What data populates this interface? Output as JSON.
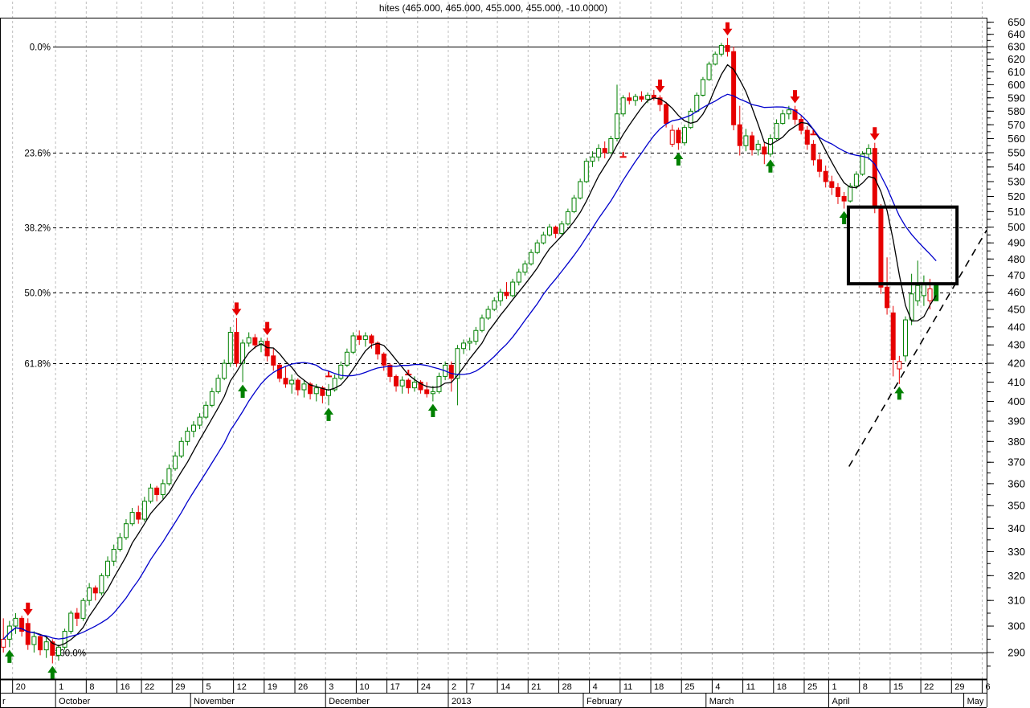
{
  "title": "hites (465.000, 465.000, 455.000, 455.000, -10.0000)",
  "colors": {
    "background": "#ffffff",
    "candle_up": "#008000",
    "candle_down": "#e60000",
    "ma_fast": "#000000",
    "ma_slow": "#0000cc",
    "grid": "#bdbdbd",
    "fib_line": "#000000",
    "annotation": "#000000",
    "axis_text": "#000000"
  },
  "chart_data": {
    "type": "candlestick",
    "y_scale": "log",
    "grid": "weekly-vertical-dashed",
    "legend_position": "none",
    "title": "hites (465.000, 465.000, 455.000, 455.000, -10.0000)",
    "last_quote": {
      "open": 465.0,
      "high": 465.0,
      "low": 455.0,
      "close": 455.0,
      "change": -10.0
    },
    "y_axis_side": "right",
    "y_ticks": [
      650,
      640,
      630,
      620,
      610,
      600,
      590,
      580,
      570,
      560,
      550,
      540,
      530,
      520,
      510,
      500,
      490,
      480,
      470,
      460,
      450,
      440,
      430,
      420,
      410,
      400,
      390,
      380,
      370,
      360,
      350,
      340,
      330,
      320,
      310,
      300,
      290
    ],
    "y_minor_step": 5,
    "fib_levels": [
      {
        "label": "0.0%",
        "price": 630,
        "style": "solid"
      },
      {
        "label": "23.6%",
        "price": 550,
        "style": "dashed"
      },
      {
        "label": "38.2%",
        "price": 500,
        "style": "dashed"
      },
      {
        "label": "50.0%",
        "price": 460,
        "style": "dashed"
      },
      {
        "label": "61.8%",
        "price": 420,
        "style": "dashed"
      },
      {
        "label": "100.0%",
        "price": 290,
        "style": "solid"
      }
    ],
    "fib_anchor_high": 630,
    "fib_anchor_low": 290,
    "week_ticks": [
      {
        "l": "20",
        "i": 2
      },
      {
        "l": "1",
        "i": 9
      },
      {
        "l": "8",
        "i": 14
      },
      {
        "l": "16",
        "i": 19
      },
      {
        "l": "22",
        "i": 23
      },
      {
        "l": "29",
        "i": 28
      },
      {
        "l": "5",
        "i": 33
      },
      {
        "l": "12",
        "i": 38
      },
      {
        "l": "19",
        "i": 43
      },
      {
        "l": "26",
        "i": 48
      },
      {
        "l": "3",
        "i": 53
      },
      {
        "l": "10",
        "i": 58
      },
      {
        "l": "17",
        "i": 63
      },
      {
        "l": "24",
        "i": 68
      },
      {
        "l": "2",
        "i": 73
      },
      {
        "l": "7",
        "i": 76
      },
      {
        "l": "14",
        "i": 81
      },
      {
        "l": "21",
        "i": 86
      },
      {
        "l": "28",
        "i": 91
      },
      {
        "l": "4",
        "i": 96
      },
      {
        "l": "11",
        "i": 101
      },
      {
        "l": "18",
        "i": 106
      },
      {
        "l": "25",
        "i": 111
      },
      {
        "l": "4",
        "i": 116
      },
      {
        "l": "11",
        "i": 121
      },
      {
        "l": "18",
        "i": 126
      },
      {
        "l": "25",
        "i": 131
      },
      {
        "l": "1",
        "i": 135
      },
      {
        "l": "8",
        "i": 140
      },
      {
        "l": "15",
        "i": 145
      },
      {
        "l": "22",
        "i": 150
      },
      {
        "l": "29",
        "i": 155
      },
      {
        "l": "6",
        "i": 160
      }
    ],
    "months": [
      {
        "label": "r",
        "i": -0.4
      },
      {
        "label": "October",
        "i": 9
      },
      {
        "label": "November",
        "i": 31
      },
      {
        "label": "December",
        "i": 53
      },
      {
        "label": "2013",
        "i": 73
      },
      {
        "label": "February",
        "i": 95
      },
      {
        "label": "March",
        "i": 115
      },
      {
        "label": "April",
        "i": 135
      },
      {
        "label": "May",
        "i": 157
      }
    ],
    "prev_close_seed": 300,
    "color_overrides": {
      "152": "green"
    },
    "candles": [
      [
        292,
        303,
        290,
        295
      ],
      [
        295,
        302,
        292,
        300
      ],
      [
        300,
        305,
        297,
        303
      ],
      [
        303,
        304,
        296,
        298
      ],
      [
        301,
        303,
        291,
        293
      ],
      [
        293,
        298,
        290,
        296
      ],
      [
        296,
        297,
        289,
        291
      ],
      [
        291,
        296,
        288,
        294
      ],
      [
        294,
        295,
        286,
        289
      ],
      [
        289,
        293,
        287,
        292
      ],
      [
        292,
        299,
        291,
        298
      ],
      [
        298,
        306,
        297,
        305
      ],
      [
        305,
        307,
        300,
        303
      ],
      [
        303,
        311,
        302,
        310
      ],
      [
        310,
        317,
        308,
        315
      ],
      [
        315,
        316,
        310,
        313
      ],
      [
        313,
        321,
        312,
        320
      ],
      [
        320,
        328,
        319,
        326
      ],
      [
        326,
        333,
        324,
        331
      ],
      [
        331,
        338,
        330,
        336
      ],
      [
        336,
        344,
        335,
        342
      ],
      [
        342,
        349,
        341,
        347
      ],
      [
        347,
        350,
        342,
        344
      ],
      [
        344,
        354,
        343,
        352
      ],
      [
        352,
        360,
        351,
        358
      ],
      [
        358,
        359,
        352,
        355
      ],
      [
        355,
        362,
        353,
        360
      ],
      [
        360,
        369,
        359,
        367
      ],
      [
        367,
        375,
        366,
        373
      ],
      [
        373,
        382,
        372,
        380
      ],
      [
        380,
        387,
        378,
        385
      ],
      [
        385,
        390,
        382,
        388
      ],
      [
        388,
        394,
        386,
        392
      ],
      [
        392,
        400,
        391,
        398
      ],
      [
        398,
        407,
        397,
        405
      ],
      [
        405,
        414,
        404,
        412
      ],
      [
        412,
        422,
        411,
        420
      ],
      [
        420,
        440,
        418,
        437
      ],
      [
        437,
        445,
        418,
        420
      ],
      [
        420,
        433,
        410,
        431
      ],
      [
        431,
        437,
        429,
        434
      ],
      [
        434,
        436,
        428,
        430
      ],
      [
        430,
        434,
        426,
        432
      ],
      [
        432,
        434,
        421,
        424
      ],
      [
        424,
        428,
        416,
        419
      ],
      [
        419,
        420,
        410,
        412
      ],
      [
        412,
        418,
        407,
        409
      ],
      [
        409,
        414,
        404,
        411
      ],
      [
        411,
        412,
        403,
        406
      ],
      [
        406,
        411,
        402,
        409
      ],
      [
        409,
        410,
        401,
        404
      ],
      [
        404,
        409,
        400,
        407
      ],
      [
        407,
        408,
        399,
        403
      ],
      [
        403,
        409,
        398,
        406
      ],
      [
        406,
        414,
        405,
        412
      ],
      [
        412,
        421,
        411,
        419
      ],
      [
        419,
        428,
        418,
        426
      ],
      [
        426,
        437,
        425,
        435
      ],
      [
        435,
        438,
        430,
        433
      ],
      [
        433,
        437,
        429,
        435
      ],
      [
        435,
        436,
        428,
        431
      ],
      [
        431,
        432,
        422,
        425
      ],
      [
        425,
        426,
        416,
        419
      ],
      [
        419,
        420,
        410,
        413
      ],
      [
        413,
        414,
        405,
        408
      ],
      [
        408,
        413,
        404,
        411
      ],
      [
        411,
        412,
        404,
        407
      ],
      [
        407,
        413,
        405,
        410
      ],
      [
        410,
        411,
        404,
        406
      ],
      [
        406,
        410,
        402,
        404
      ],
      [
        404,
        408,
        400,
        405
      ],
      [
        405,
        415,
        404,
        413
      ],
      [
        413,
        421,
        411,
        419
      ],
      [
        419,
        421,
        405,
        412
      ],
      [
        412,
        430,
        398,
        428
      ],
      [
        428,
        433,
        425,
        431
      ],
      [
        431,
        434,
        427,
        432
      ],
      [
        432,
        440,
        430,
        438
      ],
      [
        438,
        447,
        437,
        445
      ],
      [
        445,
        452,
        444,
        450
      ],
      [
        450,
        457,
        449,
        455
      ],
      [
        455,
        462,
        452,
        460
      ],
      [
        460,
        466,
        456,
        458
      ],
      [
        458,
        468,
        457,
        466
      ],
      [
        466,
        474,
        464,
        472
      ],
      [
        472,
        479,
        470,
        477
      ],
      [
        477,
        486,
        476,
        484
      ],
      [
        484,
        492,
        483,
        490
      ],
      [
        490,
        497,
        489,
        495
      ],
      [
        495,
        502,
        494,
        500
      ],
      [
        500,
        501,
        493,
        496
      ],
      [
        496,
        504,
        495,
        502
      ],
      [
        502,
        512,
        501,
        510
      ],
      [
        510,
        521,
        509,
        519
      ],
      [
        519,
        532,
        518,
        530
      ],
      [
        530,
        546,
        529,
        544
      ],
      [
        544,
        551,
        540,
        547
      ],
      [
        547,
        556,
        544,
        553
      ],
      [
        553,
        558,
        546,
        550
      ],
      [
        550,
        562,
        549,
        560
      ],
      [
        560,
        600,
        558,
        578
      ],
      [
        578,
        592,
        576,
        590
      ],
      [
        590,
        594,
        585,
        588
      ],
      [
        588,
        593,
        584,
        591
      ],
      [
        591,
        595,
        587,
        589
      ],
      [
        589,
        594,
        586,
        592
      ],
      [
        592,
        596,
        588,
        590
      ],
      [
        590,
        592,
        580,
        585
      ],
      [
        585,
        587,
        568,
        571
      ],
      [
        556,
        570,
        554,
        566
      ],
      [
        566,
        568,
        552,
        557
      ],
      [
        557,
        570,
        555,
        568
      ],
      [
        568,
        582,
        567,
        580
      ],
      [
        580,
        594,
        579,
        592
      ],
      [
        592,
        606,
        591,
        604
      ],
      [
        604,
        618,
        603,
        616
      ],
      [
        616,
        626,
        615,
        624
      ],
      [
        624,
        633,
        622,
        631
      ],
      [
        631,
        637,
        622,
        626
      ],
      [
        626,
        630,
        566,
        570
      ],
      [
        570,
        584,
        548,
        555
      ],
      [
        555,
        567,
        551,
        562
      ],
      [
        562,
        565,
        548,
        552
      ],
      [
        552,
        559,
        548,
        556
      ],
      [
        554,
        557,
        542,
        549
      ],
      [
        549,
        563,
        547,
        560
      ],
      [
        560,
        574,
        559,
        571
      ],
      [
        571,
        581,
        570,
        578
      ],
      [
        578,
        584,
        574,
        581
      ],
      [
        581,
        584,
        570,
        574
      ],
      [
        574,
        577,
        563,
        566
      ],
      [
        566,
        569,
        552,
        556
      ],
      [
        556,
        559,
        541,
        545
      ],
      [
        545,
        549,
        533,
        537
      ],
      [
        537,
        541,
        526,
        530
      ],
      [
        530,
        534,
        521,
        526
      ],
      [
        526,
        529,
        515,
        520
      ],
      [
        520,
        523,
        512,
        517
      ],
      [
        517,
        529,
        516,
        527
      ],
      [
        527,
        537,
        525,
        535
      ],
      [
        535,
        551,
        534,
        549
      ],
      [
        549,
        556,
        545,
        553
      ],
      [
        553,
        557,
        509,
        513
      ],
      [
        513,
        515,
        459,
        463
      ],
      [
        463,
        481,
        447,
        451
      ],
      [
        448,
        452,
        413,
        422
      ],
      [
        417,
        424,
        409,
        421
      ],
      [
        424,
        446,
        421,
        444
      ],
      [
        444,
        471,
        441,
        459
      ],
      [
        455,
        479,
        452,
        464
      ],
      [
        458,
        470,
        452,
        465
      ],
      [
        455,
        468,
        450,
        462
      ],
      [
        465,
        465,
        455,
        455
      ]
    ],
    "moving_averages": [
      {
        "name": "ma-fast",
        "period": 6,
        "color": "#000000"
      },
      {
        "name": "ma-slow",
        "period": 15,
        "color": "#0000cc"
      }
    ],
    "signals": {
      "buy_i": [
        1,
        8,
        39,
        53,
        70,
        110,
        125,
        137,
        146
      ],
      "sell_i": [
        4,
        38,
        43,
        107,
        118,
        129,
        142
      ],
      "dash_markers": [
        {
          "i": 53,
          "price": 413
        },
        {
          "i": 66,
          "price": 414
        },
        {
          "i": 101,
          "price": 547
        },
        {
          "i": 132,
          "price": 563
        }
      ]
    },
    "rectangle": {
      "i1": 137.7,
      "i2": 155.4,
      "price_top": 513,
      "price_bottom": 465
    },
    "trendline": {
      "i1": 137.8,
      "price1": 368,
      "i2": 160.3,
      "price2": 498,
      "style": "dashed"
    }
  }
}
